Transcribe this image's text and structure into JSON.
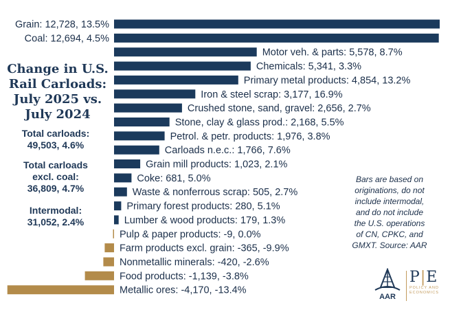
{
  "chart_data": {
    "type": "bar",
    "orientation": "horizontal",
    "title": "Change in U.S. Rail Carloads: July 2025 vs. July 2024",
    "units": "carloads",
    "colors": {
      "positive": "#1b3a5c",
      "negative": "#b38b4a",
      "text": "#1b2f4a"
    },
    "bars": [
      {
        "label": "Grain: 12,728, 13.5%",
        "value": 12728,
        "pct": 13.5
      },
      {
        "label": "Coal: 12,694, 4.5%",
        "value": 12694,
        "pct": 4.5
      },
      {
        "label": "Motor veh. & parts: 5,578, 8.7%",
        "value": 5578,
        "pct": 8.7
      },
      {
        "label": "Chemicals: 5,341, 3.3%",
        "value": 5341,
        "pct": 3.3
      },
      {
        "label": "Primary metal products: 4,854, 13.2%",
        "value": 4854,
        "pct": 13.2
      },
      {
        "label": "Iron & steel scrap: 3,177, 16.9%",
        "value": 3177,
        "pct": 16.9
      },
      {
        "label": "Crushed stone, sand, gravel: 2,656, 2.7%",
        "value": 2656,
        "pct": 2.7
      },
      {
        "label": "Stone, clay & glass prod.: 2,168, 5.5%",
        "value": 2168,
        "pct": 5.5
      },
      {
        "label": "Petrol. & petr. products: 1,976, 3.8%",
        "value": 1976,
        "pct": 3.8
      },
      {
        "label": "Carloads n.e.c.: 1,766, 7.6%",
        "value": 1766,
        "pct": 7.6
      },
      {
        "label": "Grain mill products: 1,023, 2.1%",
        "value": 1023,
        "pct": 2.1
      },
      {
        "label": "Coke: 681, 5.0%",
        "value": 681,
        "pct": 5.0
      },
      {
        "label": "Waste & nonferrous scrap: 505, 2.7%",
        "value": 505,
        "pct": 2.7
      },
      {
        "label": "Primary forest products: 280, 5.1%",
        "value": 280,
        "pct": 5.1
      },
      {
        "label": "Lumber & wood products: 179, 1.3%",
        "value": 179,
        "pct": 1.3
      },
      {
        "label": "Pulp & paper products: -9, 0.0%",
        "value": -9,
        "pct": 0.0
      },
      {
        "label": "Farm products excl. grain: -365, -9.9%",
        "value": -365,
        "pct": -9.9
      },
      {
        "label": "Nonmetallic minerals: -420, -2.6%",
        "value": -420,
        "pct": -2.6
      },
      {
        "label": "Food products: -1,139, -3.8%",
        "value": -1139,
        "pct": -3.8
      },
      {
        "label": "Metallic ores: -4,170, -13.4%",
        "value": -4170,
        "pct": -13.4
      }
    ]
  },
  "side_panel": {
    "heading_lines": [
      "Change in U.S.",
      "Rail Carloads:",
      "July 2025 vs.",
      "July 2024"
    ],
    "stats": [
      {
        "lines": [
          "Total carloads:",
          "49,503, 4.6%"
        ]
      },
      {
        "lines": [
          "Total carloads",
          "excl. coal:",
          "36,809, 4.7%"
        ]
      },
      {
        "lines": [
          "Intermodal:",
          "31,052, 2.4%"
        ]
      }
    ]
  },
  "note": {
    "lines": [
      "Bars are based on",
      "originations, do not",
      "include intermodal,",
      "and do not include",
      "the U.S. operations",
      "of CN, CPKC, and",
      "GMXT. Source: AAR"
    ]
  },
  "logos": {
    "aar_text": "AAR",
    "pe_main_left": "P",
    "pe_amp": "|",
    "pe_main_right": "E",
    "pe_sub_1": "POLICY AND",
    "pe_sub_2": "ECONOMICS"
  }
}
